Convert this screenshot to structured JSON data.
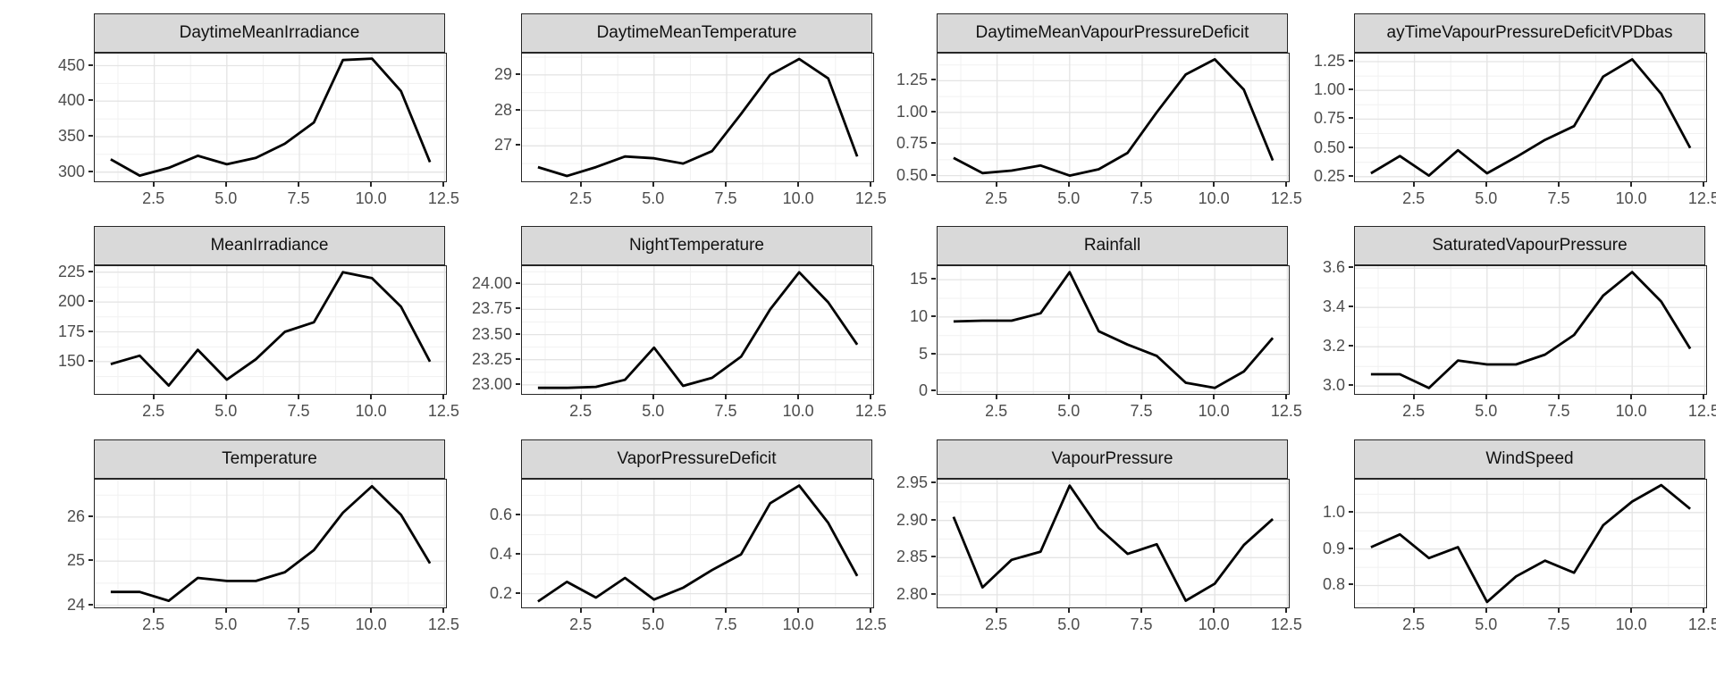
{
  "figure": {
    "background": "#ffffff",
    "line_color": "#000000",
    "strip_bg": "#d9d9d9",
    "strip_border": "#262626",
    "panel_border": "#262626",
    "grid_major": "#e4e4e4",
    "grid_minor": "#f1f1f1",
    "tick_text_color": "#4d4d4d"
  },
  "x_axis": {
    "tick_labels": [
      "2.5",
      "5.0",
      "7.5",
      "10.0",
      "12.5"
    ],
    "tick_values": [
      2.5,
      5,
      7.5,
      10,
      12.5
    ],
    "minor_values": [
      1.25,
      3.75,
      6.25,
      8.75,
      11.25
    ],
    "xlim": [
      0.45,
      12.55
    ]
  },
  "chart_data": [
    {
      "type": "line",
      "title": "DaytimeMeanIrradiance",
      "x": [
        1,
        2,
        3,
        4,
        5,
        6,
        7,
        8,
        9,
        10,
        11,
        12
      ],
      "values": [
        318,
        295,
        306,
        323,
        311,
        320,
        340,
        370,
        458,
        460,
        414,
        314
      ],
      "y_tick_labels": [
        "450",
        "400",
        "350",
        "300"
      ],
      "y_tick_values": [
        450,
        400,
        350,
        300
      ],
      "ylim": [
        287,
        467
      ]
    },
    {
      "type": "line",
      "title": "DaytimeMeanTemperature",
      "x": [
        1,
        2,
        3,
        4,
        5,
        6,
        7,
        8,
        9,
        10,
        11,
        12
      ],
      "values": [
        26.4,
        26.15,
        26.4,
        26.7,
        26.65,
        26.5,
        26.85,
        27.9,
        29.0,
        29.45,
        28.9,
        26.7
      ],
      "y_tick_labels": [
        "29",
        "28",
        "27"
      ],
      "y_tick_values": [
        29,
        28,
        27
      ],
      "ylim": [
        26.0,
        29.6
      ]
    },
    {
      "type": "line",
      "title": "DaytimeMeanVapourPressureDeficit",
      "x": [
        1,
        2,
        3,
        4,
        5,
        6,
        7,
        8,
        9,
        10,
        11,
        12
      ],
      "values": [
        0.64,
        0.52,
        0.54,
        0.58,
        0.5,
        0.55,
        0.68,
        1.0,
        1.3,
        1.42,
        1.18,
        0.62
      ],
      "y_tick_labels": [
        "1.25",
        "1.00",
        "0.75",
        "0.50"
      ],
      "y_tick_values": [
        1.25,
        1.0,
        0.75,
        0.5
      ],
      "ylim": [
        0.455,
        1.465
      ]
    },
    {
      "type": "line",
      "title": "ayTimeVapourPressureDeficitVPDbas",
      "x": [
        1,
        2,
        3,
        4,
        5,
        6,
        7,
        8,
        9,
        10,
        11,
        12
      ],
      "values": [
        0.28,
        0.43,
        0.26,
        0.48,
        0.28,
        0.42,
        0.57,
        0.69,
        1.12,
        1.27,
        0.97,
        0.5
      ],
      "y_tick_labels": [
        "1.25",
        "1.00",
        "0.75",
        "0.50",
        "0.25"
      ],
      "y_tick_values": [
        1.25,
        1.0,
        0.75,
        0.5,
        0.25
      ],
      "ylim": [
        0.21,
        1.32
      ]
    },
    {
      "type": "line",
      "title": "MeanIrradiance",
      "x": [
        1,
        2,
        3,
        4,
        5,
        6,
        7,
        8,
        9,
        10,
        11,
        12
      ],
      "values": [
        148,
        155,
        130,
        160,
        135,
        152,
        175,
        183,
        225,
        220,
        196,
        150
      ],
      "y_tick_labels": [
        "225",
        "200",
        "175",
        "150"
      ],
      "y_tick_values": [
        225,
        200,
        175,
        150
      ],
      "ylim": [
        123,
        230
      ]
    },
    {
      "type": "line",
      "title": "NightTemperature",
      "x": [
        1,
        2,
        3,
        4,
        5,
        6,
        7,
        8,
        9,
        10,
        11,
        12
      ],
      "values": [
        22.97,
        22.97,
        22.98,
        23.05,
        23.37,
        22.99,
        23.07,
        23.28,
        23.75,
        24.12,
        23.82,
        23.4
      ],
      "y_tick_labels": [
        "24.00",
        "23.75",
        "23.50",
        "23.25",
        "23.00"
      ],
      "y_tick_values": [
        24.0,
        23.75,
        23.5,
        23.25,
        23.0
      ],
      "ylim": [
        22.91,
        24.18
      ]
    },
    {
      "type": "line",
      "title": "Rainfall",
      "x": [
        1,
        2,
        3,
        4,
        5,
        6,
        7,
        8,
        9,
        10,
        11,
        12
      ],
      "values": [
        9.4,
        9.5,
        9.5,
        10.5,
        16.0,
        8.1,
        6.3,
        4.8,
        1.2,
        0.5,
        2.7,
        7.2
      ],
      "y_tick_labels": [
        "15",
        "10",
        "5",
        "0"
      ],
      "y_tick_values": [
        15,
        10,
        5,
        0
      ],
      "ylim": [
        -0.3,
        16.8
      ]
    },
    {
      "type": "line",
      "title": "SaturatedVapourPressure",
      "x": [
        1,
        2,
        3,
        4,
        5,
        6,
        7,
        8,
        9,
        10,
        11,
        12
      ],
      "values": [
        3.06,
        3.06,
        2.99,
        3.13,
        3.11,
        3.11,
        3.16,
        3.26,
        3.46,
        3.58,
        3.43,
        3.19
      ],
      "y_tick_labels": [
        "3.6",
        "3.4",
        "3.2",
        "3.0"
      ],
      "y_tick_values": [
        3.6,
        3.4,
        3.2,
        3.0
      ],
      "ylim": [
        2.96,
        3.61
      ]
    },
    {
      "type": "line",
      "title": "Temperature",
      "x": [
        1,
        2,
        3,
        4,
        5,
        6,
        7,
        8,
        9,
        10,
        11,
        12
      ],
      "values": [
        24.3,
        24.3,
        24.1,
        24.62,
        24.55,
        24.55,
        24.75,
        25.25,
        26.1,
        26.7,
        26.05,
        24.95
      ],
      "y_tick_labels": [
        "26",
        "25",
        "24"
      ],
      "y_tick_values": [
        26,
        25,
        24
      ],
      "ylim": [
        23.95,
        26.85
      ]
    },
    {
      "type": "line",
      "title": "VaporPressureDeficit",
      "x": [
        1,
        2,
        3,
        4,
        5,
        6,
        7,
        8,
        9,
        10,
        11,
        12
      ],
      "values": [
        0.16,
        0.26,
        0.18,
        0.28,
        0.17,
        0.23,
        0.32,
        0.4,
        0.66,
        0.75,
        0.56,
        0.29
      ],
      "y_tick_labels": [
        "0.6",
        "0.4",
        "0.2"
      ],
      "y_tick_values": [
        0.6,
        0.4,
        0.2
      ],
      "ylim": [
        0.13,
        0.78
      ]
    },
    {
      "type": "line",
      "title": "VapourPressure",
      "x": [
        1,
        2,
        3,
        4,
        5,
        6,
        7,
        8,
        9,
        10,
        11,
        12
      ],
      "values": [
        2.905,
        2.81,
        2.847,
        2.858,
        2.947,
        2.89,
        2.855,
        2.868,
        2.792,
        2.815,
        2.867,
        2.902
      ],
      "y_tick_labels": [
        "2.95",
        "2.90",
        "2.85",
        "2.80"
      ],
      "y_tick_values": [
        2.95,
        2.9,
        2.85,
        2.8
      ],
      "ylim": [
        2.783,
        2.955
      ]
    },
    {
      "type": "line",
      "title": "WindSpeed",
      "x": [
        1,
        2,
        3,
        4,
        5,
        6,
        7,
        8,
        9,
        10,
        11,
        12
      ],
      "values": [
        0.905,
        0.94,
        0.875,
        0.905,
        0.755,
        0.825,
        0.868,
        0.835,
        0.965,
        1.03,
        1.075,
        1.01
      ],
      "y_tick_labels": [
        "1.0",
        "0.9",
        "0.8"
      ],
      "y_tick_values": [
        1.0,
        0.9,
        0.8
      ],
      "ylim": [
        0.74,
        1.09
      ]
    }
  ]
}
